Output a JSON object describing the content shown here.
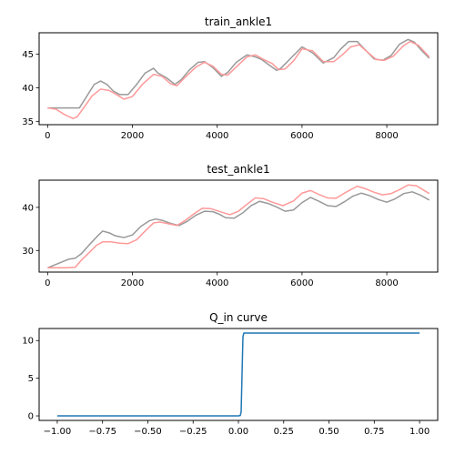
{
  "chart_data": [
    {
      "type": "line",
      "title": "train_ankle1",
      "xlim": [
        -200,
        9200
      ],
      "ylim": [
        34.5,
        48.2
      ],
      "xticks": [
        0,
        2000,
        4000,
        6000,
        8000
      ],
      "xtick_labels": [
        "0",
        "2000",
        "4000",
        "6000",
        "8000"
      ],
      "yticks": [
        35,
        40,
        45
      ],
      "ytick_labels": [
        "35",
        "40",
        "45"
      ],
      "grid": false,
      "series": [
        {
          "color": "#999999",
          "x": [
            0,
            200,
            400,
            600,
            750,
            900,
            1100,
            1250,
            1400,
            1550,
            1700,
            1900,
            2100,
            2300,
            2500,
            2600,
            2800,
            3000,
            3150,
            3350,
            3550,
            3700,
            3900,
            4100,
            4250,
            4450,
            4700,
            4900,
            5050,
            5200,
            5400,
            5500,
            5750,
            6000,
            6250,
            6500,
            6750,
            6900,
            7100,
            7300,
            7500,
            7700,
            7900,
            8100,
            8300,
            8500,
            8650,
            8800,
            9000
          ],
          "y": [
            37,
            37,
            37,
            37,
            37,
            38.5,
            40.5,
            41,
            40.5,
            39.5,
            39,
            39,
            40.5,
            42.2,
            42.9,
            42.2,
            41.5,
            40.5,
            41.2,
            42.7,
            43.8,
            43.9,
            43,
            41.7,
            42.3,
            43.8,
            44.9,
            44.6,
            44.2,
            43.5,
            42.6,
            42.9,
            44.5,
            46.1,
            45.2,
            43.7,
            44.5,
            45.7,
            46.9,
            46.9,
            45.6,
            44.3,
            44.1,
            44.8,
            46.5,
            47.2,
            46.8,
            45.7,
            44.4
          ]
        },
        {
          "color": "#ff9999",
          "x": [
            0,
            200,
            400,
            600,
            700,
            850,
            1050,
            1250,
            1450,
            1650,
            1800,
            2000,
            2250,
            2500,
            2700,
            2900,
            3050,
            3250,
            3500,
            3700,
            3900,
            4100,
            4250,
            4450,
            4700,
            4900,
            5100,
            5300,
            5450,
            5600,
            5800,
            6000,
            6250,
            6500,
            6750,
            6950,
            7150,
            7350,
            7550,
            7750,
            7950,
            8150,
            8400,
            8550,
            8750,
            9000
          ],
          "y": [
            37,
            36.8,
            36,
            35.4,
            35.7,
            37,
            38.8,
            39.8,
            39.6,
            38.9,
            38.3,
            38.7,
            40.6,
            42,
            41.7,
            40.6,
            40.3,
            41.6,
            43.1,
            43.8,
            43.2,
            42,
            41.9,
            43.1,
            44.6,
            44.9,
            44.2,
            43.6,
            42.7,
            42.8,
            44,
            45.8,
            45.5,
            43.9,
            43.9,
            44.9,
            46.1,
            46.4,
            45.3,
            44.2,
            44.1,
            44.7,
            46.3,
            46.9,
            46.3,
            44.6
          ]
        }
      ]
    },
    {
      "type": "line",
      "title": "test_ankle1",
      "xlim": [
        -200,
        9200
      ],
      "ylim": [
        25,
        46.3
      ],
      "xticks": [
        0,
        2000,
        4000,
        6000,
        8000
      ],
      "xtick_labels": [
        "0",
        "2000",
        "4000",
        "6000",
        "8000"
      ],
      "yticks": [
        30,
        40
      ],
      "ytick_labels": [
        "30",
        "40"
      ],
      "grid": false,
      "series": [
        {
          "color": "#999999",
          "x": [
            0,
            150,
            300,
            500,
            650,
            800,
            1000,
            1200,
            1300,
            1450,
            1600,
            1800,
            2000,
            2200,
            2400,
            2550,
            2700,
            2900,
            3100,
            3300,
            3500,
            3700,
            3900,
            4050,
            4200,
            4400,
            4600,
            4800,
            5000,
            5200,
            5400,
            5600,
            5800,
            6000,
            6200,
            6400,
            6600,
            6800,
            7000,
            7200,
            7400,
            7600,
            7800,
            8000,
            8200,
            8400,
            8600,
            8800,
            9000
          ],
          "y": [
            26,
            26.6,
            27.2,
            28,
            28.2,
            29.3,
            31.5,
            33.6,
            34.5,
            34.1,
            33.4,
            33,
            33.6,
            35.6,
            36.9,
            37.3,
            37,
            36.3,
            35.8,
            36.8,
            38.2,
            39.1,
            39,
            38.4,
            37.6,
            37.5,
            38.7,
            40.4,
            41.4,
            40.9,
            40.1,
            39.1,
            39.4,
            41.1,
            42.3,
            41.4,
            40.4,
            40.2,
            41.3,
            42.6,
            43.3,
            42.7,
            41.8,
            41.2,
            42,
            43.2,
            43.6,
            42.8,
            41.7
          ]
        },
        {
          "color": "#ff9999",
          "x": [
            0,
            200,
            400,
            650,
            800,
            1000,
            1150,
            1300,
            1500,
            1700,
            1900,
            2100,
            2300,
            2500,
            2650,
            2850,
            3050,
            3250,
            3450,
            3650,
            3850,
            4100,
            4300,
            4500,
            4700,
            4900,
            5100,
            5300,
            5550,
            5800,
            6000,
            6200,
            6400,
            6600,
            6800,
            7000,
            7300,
            7500,
            7700,
            7900,
            8100,
            8300,
            8500,
            8700,
            9000
          ],
          "y": [
            26,
            26,
            26,
            26.1,
            27.8,
            29.7,
            31.2,
            32,
            32,
            31.7,
            31.6,
            32.5,
            34.5,
            36.4,
            36.6,
            36.2,
            35.8,
            37,
            38.5,
            39.8,
            39.7,
            38.9,
            38.3,
            39.1,
            40.7,
            42.2,
            42,
            41.2,
            40.4,
            41.5,
            43.3,
            43.9,
            43,
            42.2,
            42.1,
            43.3,
            44.9,
            44.3,
            43.5,
            42.9,
            43.2,
            44.1,
            45.2,
            45,
            43.2
          ]
        }
      ]
    },
    {
      "type": "line",
      "title": "Q_in curve",
      "xlim": [
        -1.1,
        1.1
      ],
      "ylim": [
        -0.6,
        11.6
      ],
      "xticks": [
        -1,
        -0.75,
        -0.5,
        -0.25,
        0,
        0.25,
        0.5,
        0.75,
        1
      ],
      "xtick_labels": [
        "−1.00",
        "−0.75",
        "−0.50",
        "−0.25",
        "0.00",
        "0.25",
        "0.50",
        "0.75",
        "1.00"
      ],
      "yticks": [
        0,
        5,
        10
      ],
      "ytick_labels": [
        "0",
        "5",
        "10"
      ],
      "grid": false,
      "series": [
        {
          "color": "#1f77b4",
          "x": [
            -1,
            0,
            0.01,
            0.015,
            0.02,
            0.025,
            0.03,
            1
          ],
          "y": [
            0,
            0,
            0.05,
            0.5,
            5.5,
            10.5,
            11,
            11
          ]
        }
      ]
    }
  ]
}
